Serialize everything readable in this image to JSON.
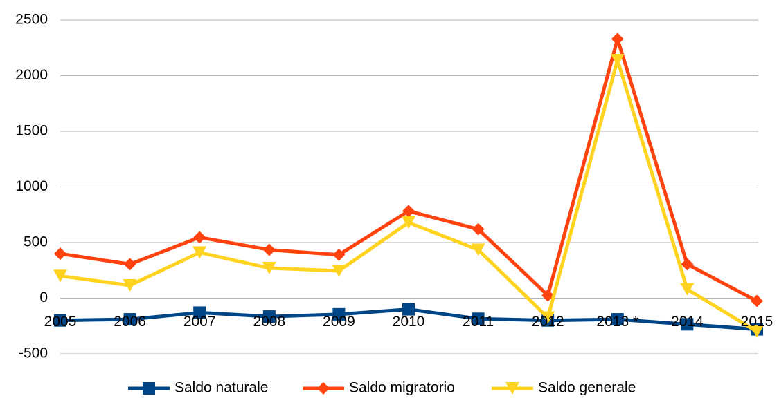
{
  "chart_data": {
    "type": "line",
    "categories": [
      "2005",
      "2006",
      "2007",
      "2008",
      "2009",
      "2010",
      "2011",
      "2012",
      "2013 *",
      "2014",
      "2015"
    ],
    "series": [
      {
        "name": "Saldo naturale",
        "color": "#004586",
        "marker": "square",
        "values": [
          -200,
          -190,
          -130,
          -165,
          -145,
          -100,
          -185,
          -200,
          -190,
          -235,
          -280
        ]
      },
      {
        "name": "Saldo migratorio",
        "color": "#ff420e",
        "marker": "diamond",
        "values": [
          400,
          305,
          547,
          435,
          390,
          783,
          620,
          25,
          2330,
          305,
          -25
        ]
      },
      {
        "name": "Saldo generale",
        "color": "#ffd320",
        "marker": "triangle-down",
        "values": [
          200,
          115,
          410,
          270,
          245,
          680,
          435,
          -175,
          2140,
          80,
          -300
        ]
      }
    ],
    "ylim": [
      -500,
      2500
    ],
    "yticks": [
      -500,
      0,
      500,
      1000,
      1500,
      2000,
      2500
    ],
    "grid": true,
    "legend": "bottom"
  }
}
